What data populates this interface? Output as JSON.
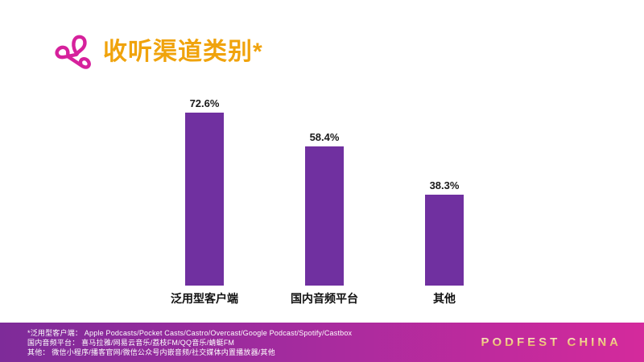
{
  "header": {
    "title": "收听渠道类别*",
    "title_color": "#F0A30C",
    "logo_color": "#D6219C"
  },
  "chart_data": {
    "type": "bar",
    "title": "收听渠道类别*",
    "categories": [
      "泛用型客户端",
      "国内音频平台",
      "其他"
    ],
    "values": [
      72.6,
      58.4,
      38.3
    ],
    "value_labels": [
      "72.6%",
      "58.4%",
      "38.3%"
    ],
    "bar_color": "#7030A0",
    "xlabel": "",
    "ylabel": "",
    "ylim": [
      0,
      80
    ],
    "grid": false,
    "legend": "none",
    "axes_visible": false
  },
  "footer": {
    "notes": [
      "*泛用型客户端： Apple Podcasts/Pocket Casts/Castro/Overcast/Google Podcast/Spotify/Castbox",
      "国内音频平台： 喜马拉雅/网易云音乐/荔枝FM/QQ音乐/蜻蜓FM",
      "其他： 微信小程序/播客官网/微信公众号内嵌音频/社交媒体内置播放器/其他"
    ],
    "brand": "PODFEST CHINA",
    "gradient_left": "#7E2B99",
    "gradient_right": "#D42A9C",
    "brand_color": "#F2CE8E"
  }
}
